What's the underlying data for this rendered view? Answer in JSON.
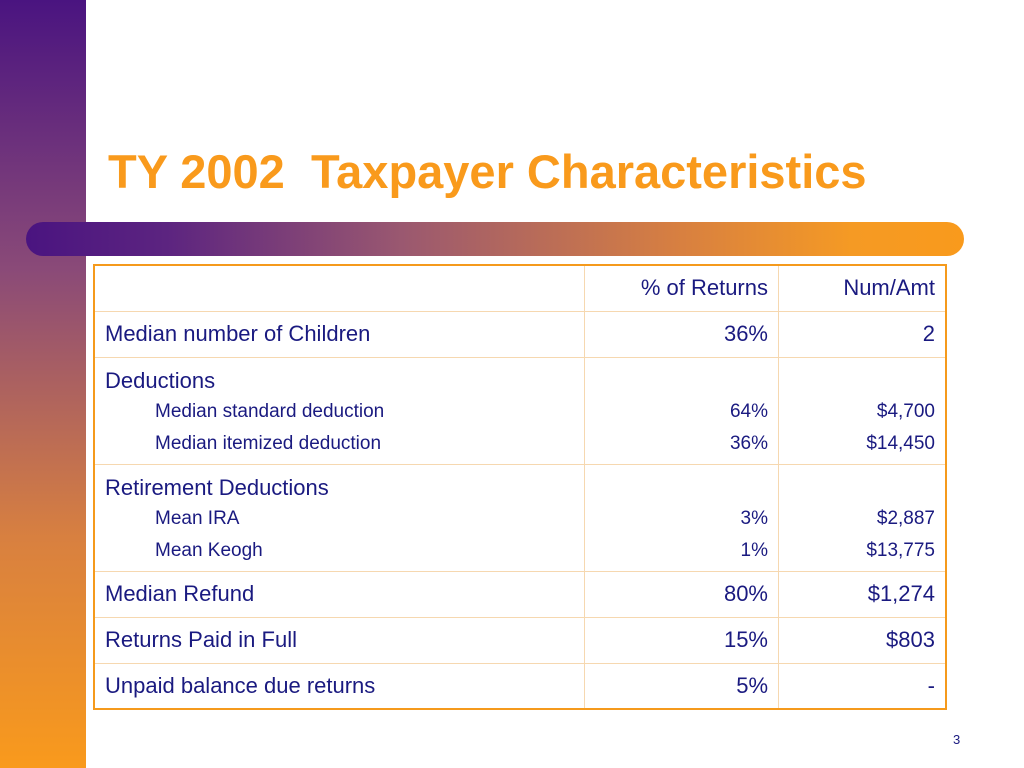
{
  "slide": {
    "title": "TY 2002  Taxpayer Characteristics",
    "page_number": "3",
    "colors": {
      "title": "#f99a1c",
      "text": "#1a1a80",
      "border": "#f59a1c",
      "gradient_start": "#4a1480",
      "gradient_end": "#f99a1c"
    }
  },
  "table": {
    "headers": [
      "",
      "% of Returns",
      "Num/Amt"
    ],
    "rows": {
      "children": {
        "label": "Median number of Children",
        "pct": "36%",
        "num": "2"
      },
      "deductions": {
        "label": "Deductions",
        "items": [
          {
            "label": "Median standard deduction",
            "pct": "64%",
            "num": "$4,700"
          },
          {
            "label": "Median itemized deduction",
            "pct": "36%",
            "num": "$14,450"
          }
        ]
      },
      "retirement": {
        "label": "Retirement Deductions",
        "items": [
          {
            "label": "Mean IRA",
            "pct": "3%",
            "num": "$2,887"
          },
          {
            "label": "Mean Keogh",
            "pct": "1%",
            "num": "$13,775"
          }
        ]
      },
      "refund": {
        "label": "Median Refund",
        "pct": "80%",
        "num": "$1,274"
      },
      "paid_full": {
        "label": "Returns Paid in Full",
        "pct": "15%",
        "num": "$803"
      },
      "unpaid": {
        "label": "Unpaid balance due returns",
        "pct": "5%",
        "num": "-"
      }
    }
  }
}
